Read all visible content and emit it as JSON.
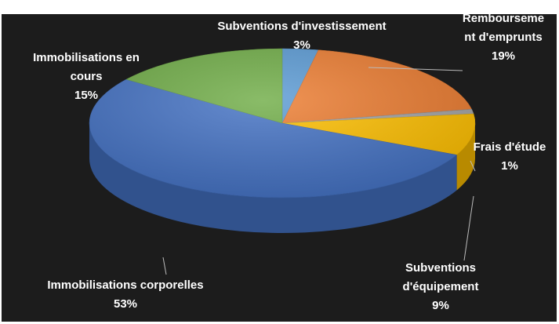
{
  "chart_data": {
    "type": "pie3d",
    "categories": [
      "Subventions d'investissement",
      "Remboursement d'emprunts",
      "Frais d'étude",
      "Subventions d'équipement",
      "Immobilisations corporelles",
      "Immobilisations en cours"
    ],
    "values": [
      3,
      19,
      1,
      9,
      53,
      15
    ],
    "value_labels": [
      "3%",
      "19%",
      "1%",
      "9%",
      "53%",
      "15%"
    ],
    "colors": [
      "#5b9bd5",
      "#ed7d31",
      "#a5a5a5",
      "#ffc000",
      "#4472c4",
      "#70ad47"
    ]
  }
}
